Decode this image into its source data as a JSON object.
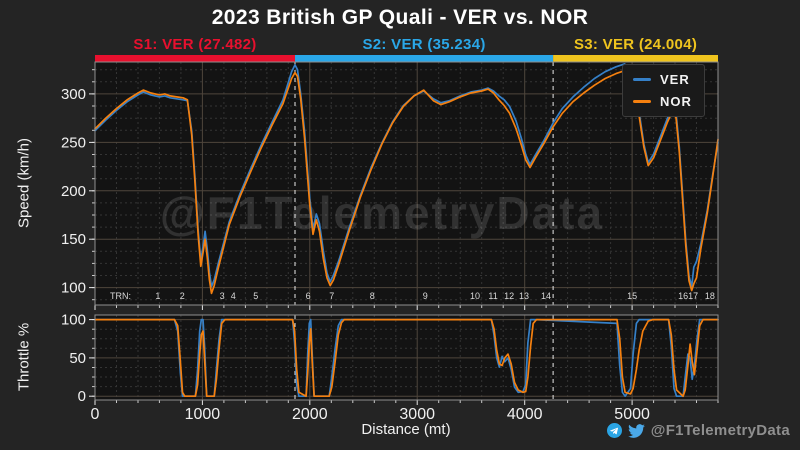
{
  "title": "2023 British GP Quali - VER vs. NOR",
  "watermark": "@F1TelemetryData",
  "footer": {
    "handle": "@F1TelemetryData"
  },
  "sectors": [
    {
      "label": "S1: VER (27.482)",
      "color": "#e8102e",
      "start": 0,
      "end": 1862
    },
    {
      "label": "S2: VER (35.234)",
      "color": "#2aa7e8",
      "start": 1862,
      "end": 4265
    },
    {
      "label": "S3: VER (24.004)",
      "color": "#efc41e",
      "start": 4265,
      "end": 5800
    }
  ],
  "chart_data": [
    {
      "type": "line",
      "title": "Speed trace",
      "ylabel": "Speed (km/h)",
      "xlim": [
        0,
        5800
      ],
      "ylim": [
        82,
        333
      ],
      "yticks": [
        100,
        150,
        200,
        250,
        300
      ],
      "x_major": 1000,
      "x_minor": 200,
      "y_minor": 12.5,
      "grid": true,
      "legend_position": "upper right",
      "sector_lines": [
        1862,
        4265
      ],
      "turn_label_prefix": "TRN:",
      "turns": [
        {
          "n": "1",
          "d": 586
        },
        {
          "n": "2",
          "d": 812
        },
        {
          "n": "3",
          "d": 1183
        },
        {
          "n": "4",
          "d": 1288
        },
        {
          "n": "5",
          "d": 1496
        },
        {
          "n": "6",
          "d": 1984
        },
        {
          "n": "7",
          "d": 2204
        },
        {
          "n": "8",
          "d": 2581
        },
        {
          "n": "9",
          "d": 3074
        },
        {
          "n": "10",
          "d": 3538
        },
        {
          "n": "11",
          "d": 3706
        },
        {
          "n": "12",
          "d": 3855
        },
        {
          "n": "13",
          "d": 3994
        },
        {
          "n": "14",
          "d": 4199
        },
        {
          "n": "15",
          "d": 5000
        },
        {
          "n": "16",
          "d": 5475
        },
        {
          "n": "17",
          "d": 5568
        },
        {
          "n": "18",
          "d": 5725
        }
      ],
      "x": [
        0,
        100,
        200,
        300,
        400,
        450,
        520,
        600,
        650,
        700,
        760,
        820,
        860,
        900,
        930,
        960,
        985,
        1005,
        1025,
        1045,
        1065,
        1085,
        1110,
        1150,
        1250,
        1350,
        1450,
        1550,
        1650,
        1750,
        1830,
        1862,
        1885,
        1915,
        1950,
        2000,
        2030,
        2060,
        2090,
        2125,
        2160,
        2190,
        2220,
        2270,
        2370,
        2470,
        2570,
        2670,
        2770,
        2870,
        2970,
        3060,
        3150,
        3220,
        3300,
        3400,
        3500,
        3600,
        3660,
        3710,
        3760,
        3810,
        3860,
        3920,
        3970,
        4010,
        4050,
        4100,
        4180,
        4265,
        4350,
        4450,
        4550,
        4650,
        4750,
        4850,
        4930,
        4990,
        5030,
        5070,
        5110,
        5150,
        5200,
        5260,
        5330,
        5380,
        5410,
        5440,
        5470,
        5500,
        5530,
        5555,
        5575,
        5600,
        5640,
        5700,
        5750,
        5800
      ],
      "series": [
        {
          "name": "VER",
          "color": "#3580c8",
          "values": [
            262,
            273,
            283,
            292,
            299,
            302,
            299,
            297,
            298,
            296,
            295,
            294,
            293,
            262,
            215,
            160,
            128,
            142,
            158,
            140,
            116,
            101,
            108,
            126,
            168,
            197,
            223,
            248,
            271,
            294,
            323,
            330,
            325,
            300,
            262,
            192,
            160,
            176,
            166,
            138,
            115,
            106,
            113,
            128,
            163,
            195,
            224,
            249,
            271,
            288,
            298,
            303,
            295,
            291,
            293,
            298,
            302,
            304,
            306,
            303,
            298,
            294,
            287,
            272,
            254,
            237,
            227,
            237,
            252,
            270,
            285,
            297,
            307,
            316,
            323,
            328,
            331,
            326,
            308,
            278,
            248,
            229,
            238,
            255,
            275,
            288,
            280,
            245,
            196,
            148,
            112,
            101,
            121,
            127,
            145,
            180,
            216,
            250
          ]
        },
        {
          "name": "NOR",
          "color": "#f5800f",
          "values": [
            264,
            275,
            285,
            294,
            301,
            304,
            301,
            299,
            300,
            298,
            297,
            296,
            294,
            258,
            210,
            155,
            122,
            136,
            150,
            132,
            108,
            94,
            102,
            121,
            165,
            194,
            220,
            245,
            268,
            290,
            316,
            322,
            318,
            295,
            255,
            185,
            155,
            170,
            158,
            130,
            110,
            102,
            108,
            124,
            160,
            193,
            222,
            248,
            270,
            287,
            298,
            304,
            293,
            289,
            292,
            297,
            301,
            303,
            305,
            301,
            294,
            288,
            280,
            264,
            247,
            232,
            224,
            234,
            249,
            266,
            280,
            292,
            301,
            309,
            316,
            321,
            324,
            319,
            303,
            274,
            245,
            226,
            234,
            251,
            271,
            283,
            275,
            240,
            191,
            143,
            107,
            97,
            104,
            110,
            140,
            177,
            214,
            253
          ]
        }
      ]
    },
    {
      "type": "line",
      "title": "Throttle trace",
      "ylabel": "Throttle %",
      "xlabel": "Distance (mt)",
      "xlim": [
        0,
        5800
      ],
      "ylim": [
        -5,
        106
      ],
      "yticks": [
        0,
        50,
        100
      ],
      "xticks": [
        0,
        1000,
        2000,
        3000,
        4000,
        5000
      ],
      "x_major": 1000,
      "x_minor": 200,
      "y_minor": 12.5,
      "sector_lines": [
        1862,
        4265
      ],
      "x": [
        0,
        740,
        770,
        795,
        815,
        835,
        935,
        955,
        975,
        990,
        1005,
        1020,
        1040,
        1110,
        1130,
        1155,
        1180,
        1210,
        1840,
        1858,
        1878,
        1898,
        1965,
        1980,
        1995,
        2008,
        2022,
        2040,
        2180,
        2205,
        2235,
        2265,
        2295,
        2320,
        3690,
        3715,
        3740,
        3765,
        3790,
        3815,
        3845,
        3875,
        3905,
        3940,
        3985,
        4010,
        4030,
        4055,
        4080,
        4110,
        4860,
        4885,
        4910,
        4935,
        4985,
        5010,
        5040,
        5065,
        5100,
        5150,
        5195,
        5340,
        5365,
        5390,
        5415,
        5475,
        5495,
        5520,
        5540,
        5560,
        5580,
        5605,
        5630,
        5660,
        5800
      ],
      "series": [
        {
          "name": "VER",
          "color": "#3580c8",
          "values": [
            100,
            100,
            85,
            30,
            0,
            0,
            0,
            35,
            85,
            100,
            100,
            65,
            0,
            0,
            35,
            75,
            100,
            100,
            100,
            70,
            15,
            0,
            0,
            55,
            95,
            100,
            55,
            0,
            0,
            25,
            62,
            92,
            100,
            100,
            100,
            80,
            50,
            38,
            52,
            45,
            50,
            35,
            12,
            5,
            6,
            15,
            70,
            100,
            100,
            100,
            95,
            40,
            5,
            0,
            10,
            55,
            95,
            100,
            100,
            100,
            100,
            100,
            65,
            10,
            0,
            0,
            25,
            55,
            50,
            22,
            40,
            75,
            100,
            100,
            100
          ]
        },
        {
          "name": "NOR",
          "color": "#f5800f",
          "values": [
            100,
            100,
            92,
            45,
            5,
            0,
            0,
            15,
            55,
            80,
            85,
            48,
            0,
            0,
            22,
            62,
            95,
            100,
            100,
            85,
            35,
            5,
            0,
            30,
            70,
            88,
            45,
            0,
            0,
            12,
            45,
            80,
            96,
            100,
            100,
            88,
            60,
            42,
            40,
            50,
            55,
            42,
            18,
            8,
            5,
            6,
            25,
            65,
            95,
            100,
            100,
            75,
            25,
            5,
            3,
            10,
            35,
            60,
            85,
            98,
            100,
            100,
            80,
            35,
            8,
            0,
            8,
            40,
            68,
            45,
            28,
            60,
            92,
            100,
            100
          ]
        }
      ]
    }
  ]
}
